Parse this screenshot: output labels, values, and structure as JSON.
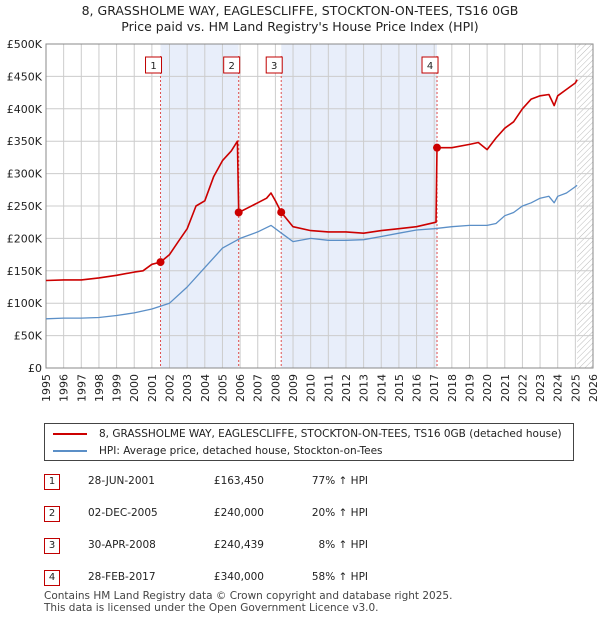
{
  "title_line1": "8, GRASSHOLME WAY, EAGLESCLIFFE, STOCKTON-ON-TEES, TS16 0GB",
  "title_line2": "Price paid vs. HM Land Registry's House Price Index (HPI)",
  "colors": {
    "property": "#cc0000",
    "hpi": "#5b8fc7",
    "shade": "#e8eefa",
    "grid": "#cccccc",
    "marker_border": "#c00000"
  },
  "chart_data": {
    "type": "line",
    "xlim": [
      1995,
      2026
    ],
    "ylim": [
      0,
      500000
    ],
    "y_ticks": [
      0,
      50000,
      100000,
      150000,
      200000,
      250000,
      300000,
      350000,
      400000,
      450000,
      500000
    ],
    "y_tick_labels": [
      "£0",
      "£50K",
      "£100K",
      "£150K",
      "£200K",
      "£250K",
      "£300K",
      "£350K",
      "£400K",
      "£450K",
      "£500K"
    ],
    "x_ticks": [
      1995,
      1996,
      1997,
      1998,
      1999,
      2000,
      2001,
      2002,
      2003,
      2004,
      2005,
      2006,
      2007,
      2008,
      2009,
      2010,
      2011,
      2012,
      2013,
      2014,
      2015,
      2016,
      2017,
      2018,
      2019,
      2020,
      2021,
      2022,
      2023,
      2024,
      2025,
      2026
    ],
    "x_tick_labels": [
      "1995",
      "1996",
      "1997",
      "1998",
      "1999",
      "2000",
      "2001",
      "2002",
      "2003",
      "2004",
      "2005",
      "2006",
      "2007",
      "2008",
      "2009",
      "2010",
      "2011",
      "2012",
      "2013",
      "2014",
      "2015",
      "2016",
      "2017",
      "2018",
      "2019",
      "2020",
      "2021",
      "2022",
      "2023",
      "2024",
      "2025",
      "2026"
    ],
    "grid": true,
    "shaded_ranges": [
      [
        2001.49,
        2005.92
      ],
      [
        2008.33,
        2017.16
      ]
    ],
    "future_hatch_from": 2025.1,
    "series": [
      {
        "name": "8, GRASSHOLME WAY, EAGLESCLIFFE, STOCKTON-ON-TEES, TS16 0GB (detached house)",
        "x": [
          1995.0,
          1996.0,
          1997.0,
          1998.0,
          1999.0,
          2000.0,
          2000.5,
          2001.0,
          2001.49,
          2002.0,
          2002.5,
          2003.0,
          2003.5,
          2004.0,
          2004.5,
          2005.0,
          2005.5,
          2005.85,
          2005.92,
          2006.5,
          2007.0,
          2007.5,
          2007.75,
          2008.0,
          2008.33,
          2009.0,
          2010.0,
          2011.0,
          2012.0,
          2013.0,
          2014.0,
          2015.0,
          2016.0,
          2017.1,
          2017.16,
          2018.0,
          2019.0,
          2019.5,
          2020.0,
          2020.5,
          2021.0,
          2021.5,
          2022.0,
          2022.5,
          2023.0,
          2023.5,
          2023.8,
          2024.0,
          2024.5,
          2025.0,
          2025.1
        ],
        "y": [
          135000,
          136000,
          136000,
          139000,
          143000,
          148000,
          150000,
          160000,
          163450,
          175000,
          195000,
          215000,
          250000,
          258000,
          295000,
          320000,
          335000,
          350000,
          240000,
          248000,
          255000,
          262000,
          270000,
          258000,
          240439,
          218000,
          212000,
          210000,
          210000,
          208000,
          212000,
          215000,
          218000,
          225000,
          340000,
          340000,
          345000,
          348000,
          337000,
          355000,
          370000,
          380000,
          400000,
          415000,
          420000,
          422000,
          405000,
          420000,
          430000,
          440000,
          445000
        ]
      },
      {
        "name": "HPI: Average price, detached house, Stockton-on-Tees",
        "x": [
          1995.0,
          1996.0,
          1997.0,
          1998.0,
          1999.0,
          2000.0,
          2001.0,
          2002.0,
          2003.0,
          2004.0,
          2005.0,
          2006.0,
          2007.0,
          2007.75,
          2008.5,
          2009.0,
          2010.0,
          2011.0,
          2012.0,
          2013.0,
          2014.0,
          2015.0,
          2016.0,
          2017.0,
          2018.0,
          2019.0,
          2020.0,
          2020.5,
          2021.0,
          2021.5,
          2022.0,
          2022.5,
          2023.0,
          2023.5,
          2023.8,
          2024.0,
          2024.5,
          2025.0,
          2025.1
        ],
        "y": [
          76000,
          77000,
          77000,
          78000,
          81000,
          85000,
          91000,
          100000,
          125000,
          155000,
          185000,
          200000,
          210000,
          220000,
          205000,
          195000,
          200000,
          197000,
          197000,
          198000,
          203000,
          208000,
          213000,
          215000,
          218000,
          220000,
          220000,
          223000,
          235000,
          240000,
          250000,
          255000,
          262000,
          265000,
          255000,
          265000,
          270000,
          280000,
          282000
        ]
      }
    ],
    "sale_markers": [
      {
        "label": "1",
        "x": 2001.49,
        "y": 163450
      },
      {
        "label": "2",
        "x": 2005.92,
        "y": 240000
      },
      {
        "label": "3",
        "x": 2008.33,
        "y": 240439
      },
      {
        "label": "4",
        "x": 2017.16,
        "y": 340000
      }
    ],
    "legend": {
      "property_label": "8, GRASSHOLME WAY, EAGLESCLIFFE, STOCKTON-ON-TEES, TS16 0GB (detached house)",
      "hpi_label": "HPI: Average price, detached house, Stockton-on-Tees"
    }
  },
  "sales": [
    {
      "num": "1",
      "date": "28-JUN-2001",
      "price": "£163,450",
      "pct": "77% ↑ HPI"
    },
    {
      "num": "2",
      "date": "02-DEC-2005",
      "price": "£240,000",
      "pct": "20% ↑ HPI"
    },
    {
      "num": "3",
      "date": "30-APR-2008",
      "price": "£240,439",
      "pct": "8% ↑ HPI"
    },
    {
      "num": "4",
      "date": "28-FEB-2017",
      "price": "£340,000",
      "pct": "58% ↑ HPI"
    }
  ],
  "footer_line1": "Contains HM Land Registry data © Crown copyright and database right 2025.",
  "footer_line2": "This data is licensed under the Open Government Licence v3.0."
}
